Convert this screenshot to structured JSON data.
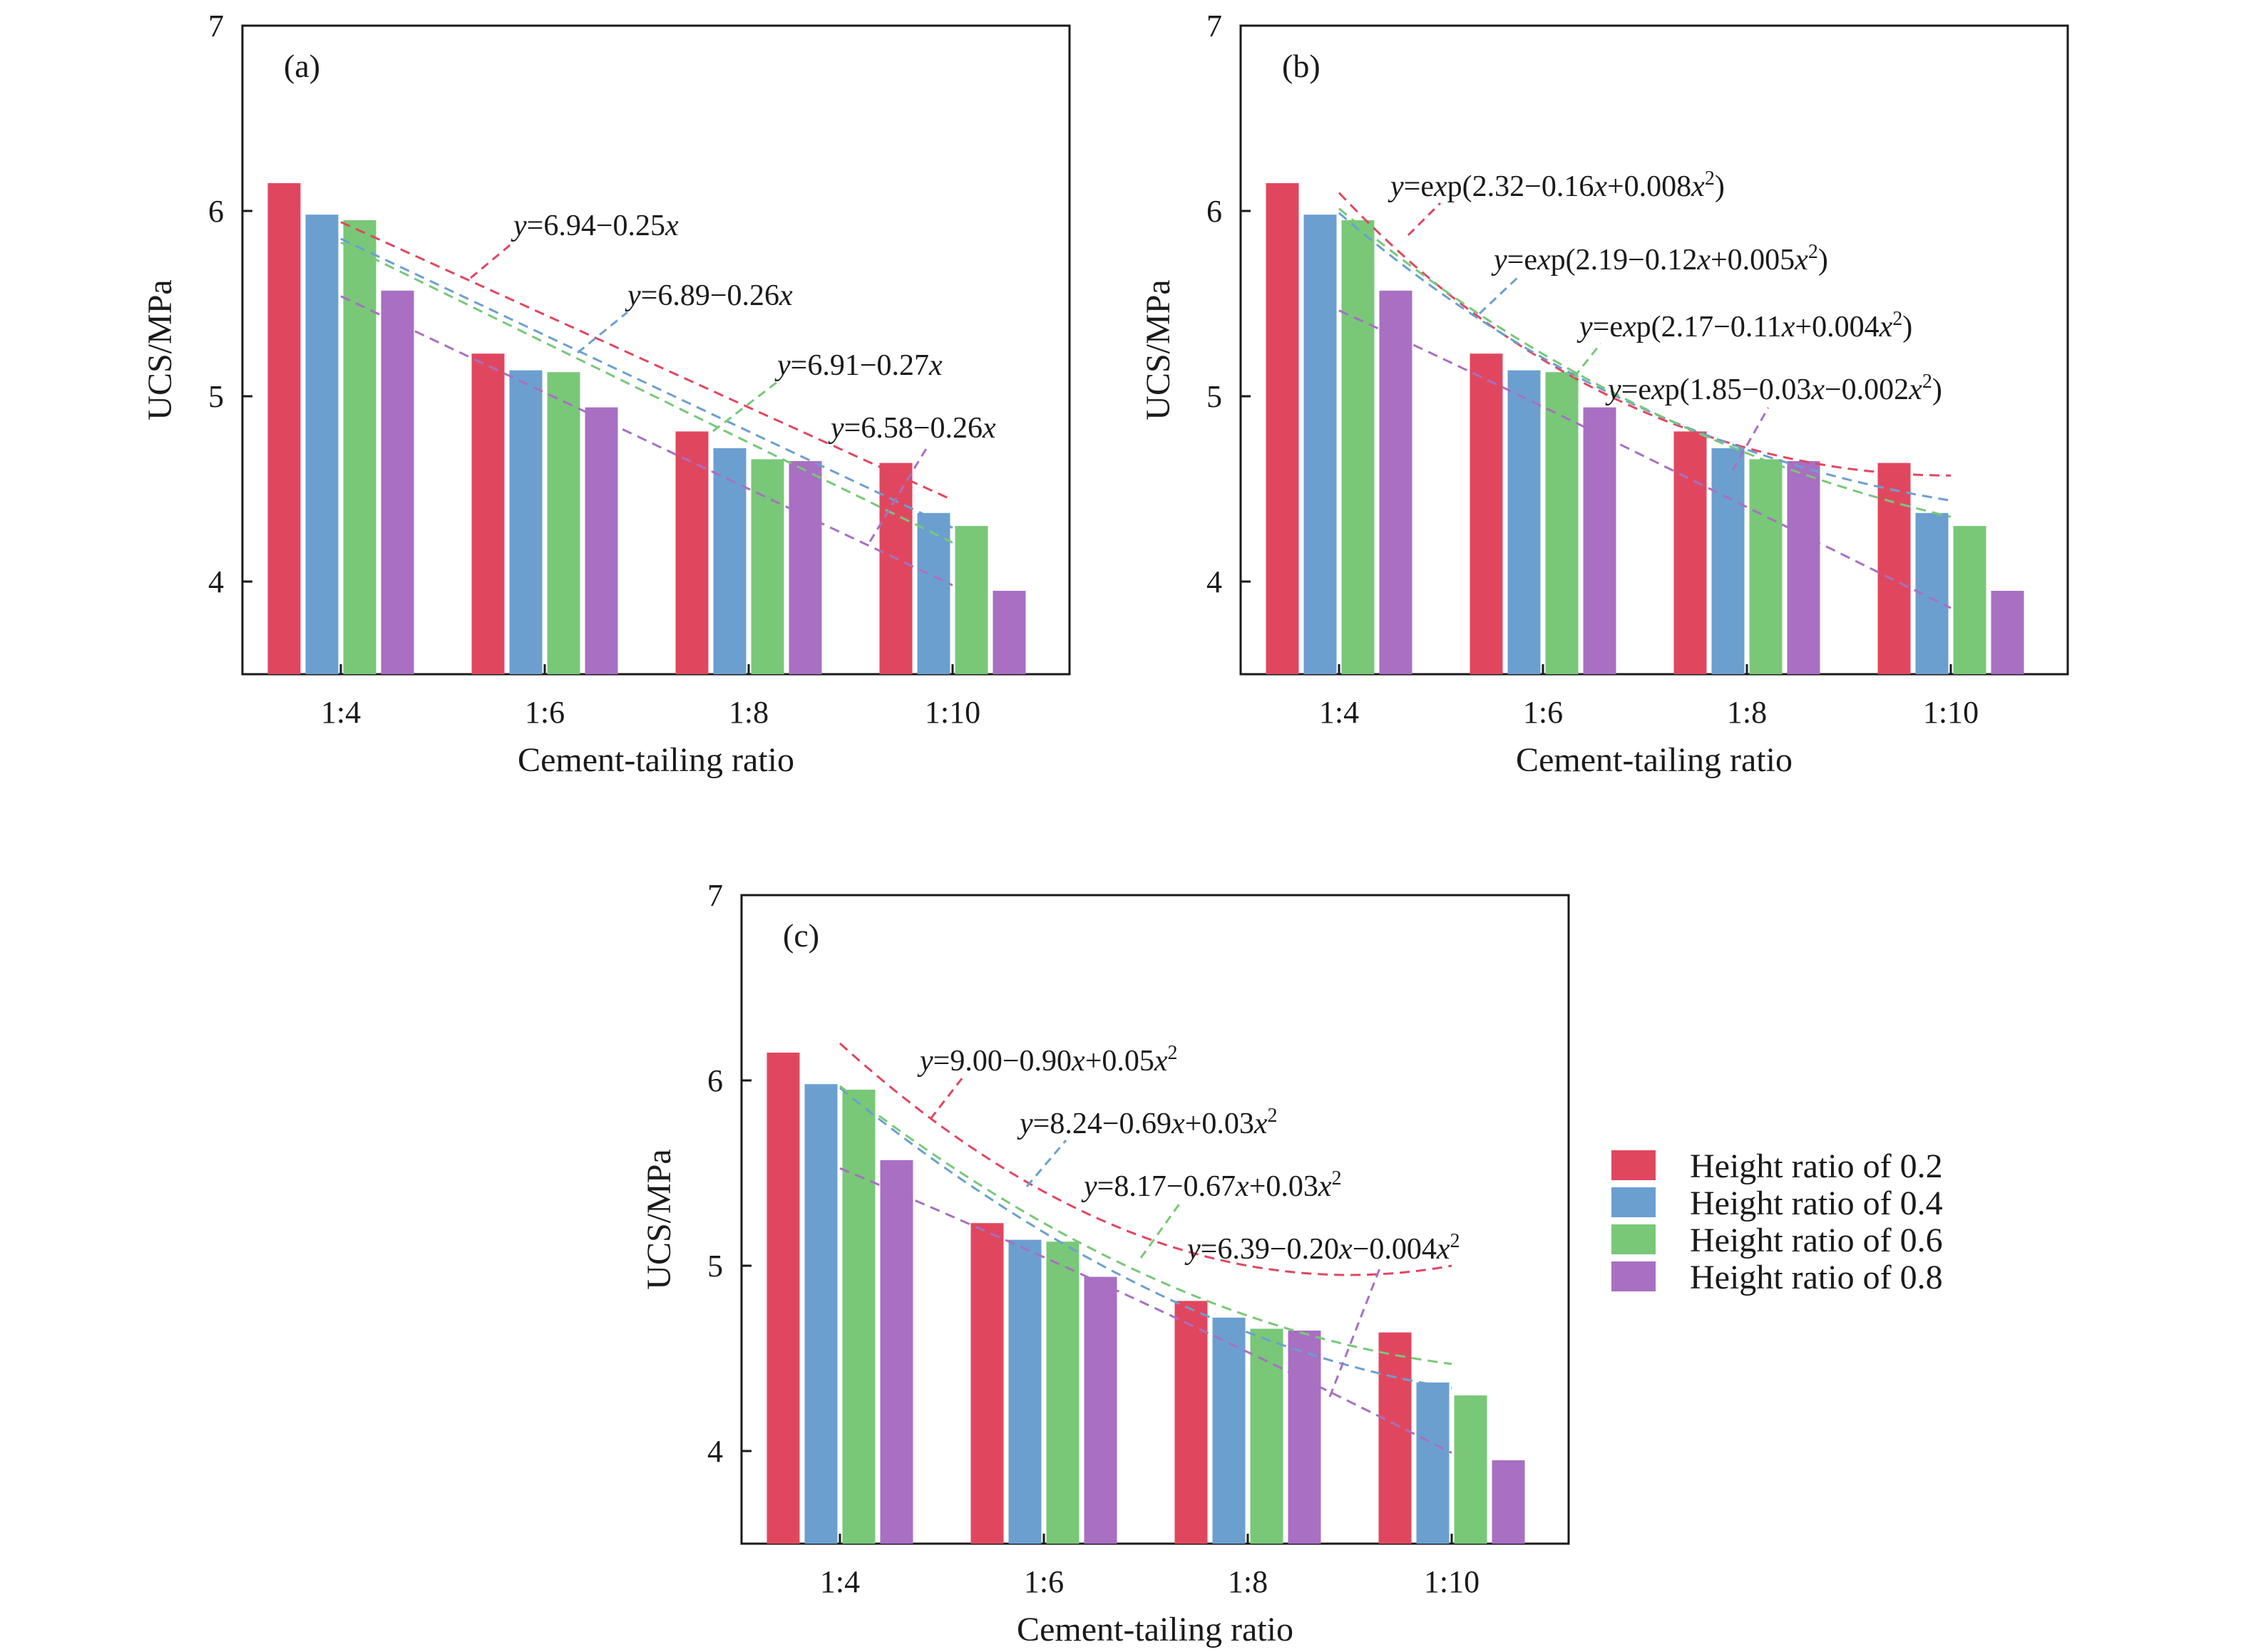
{
  "figure": {
    "legend": {
      "placement": "right of panel (c)",
      "entries": [
        "Height ratio of 0.2",
        "Height ratio of 0.4",
        "Height ratio of 0.6",
        "Height ratio of 0.8"
      ]
    }
  },
  "colors": {
    "series": [
      "#e0475f",
      "#6b9fd0",
      "#78c878",
      "#a86fc2"
    ]
  },
  "chart_data": [
    {
      "type": "bar",
      "panel_label": "(a)",
      "xlabel": "Cement-tailing ratio",
      "ylabel": "UCS/MPa",
      "categories": [
        "1:4",
        "1:6",
        "1:8",
        "1:10"
      ],
      "ylim": [
        3.5,
        7
      ],
      "yticks": [
        4,
        5,
        6,
        7
      ],
      "grid": false,
      "series": [
        {
          "name": "Height ratio of 0.2",
          "values": [
            6.15,
            5.23,
            4.81,
            4.64
          ]
        },
        {
          "name": "Height ratio of 0.4",
          "values": [
            5.98,
            5.14,
            4.72,
            4.37
          ]
        },
        {
          "name": "Height ratio of 0.6",
          "values": [
            5.95,
            5.13,
            4.66,
            4.3
          ]
        },
        {
          "name": "Height ratio of 0.8",
          "values": [
            5.57,
            4.94,
            4.65,
            3.95
          ]
        }
      ],
      "fits": [
        {
          "series": "Height ratio of 0.2",
          "equation": "y=6.94−0.25x"
        },
        {
          "series": "Height ratio of 0.4",
          "equation": "y=6.89−0.26x"
        },
        {
          "series": "Height ratio of 0.6",
          "equation": "y=6.91−0.27x"
        },
        {
          "series": "Height ratio of 0.8",
          "equation": "y=6.58−0.26x"
        }
      ]
    },
    {
      "type": "bar",
      "panel_label": "(b)",
      "xlabel": "Cement-tailing ratio",
      "ylabel": "UCS/MPa",
      "categories": [
        "1:4",
        "1:6",
        "1:8",
        "1:10"
      ],
      "ylim": [
        3.5,
        7
      ],
      "yticks": [
        4,
        5,
        6,
        7
      ],
      "grid": false,
      "series": [
        {
          "name": "Height ratio of 0.2",
          "values": [
            6.15,
            5.23,
            4.81,
            4.64
          ]
        },
        {
          "name": "Height ratio of 0.4",
          "values": [
            5.98,
            5.14,
            4.72,
            4.37
          ]
        },
        {
          "name": "Height ratio of 0.6",
          "values": [
            5.95,
            5.13,
            4.66,
            4.3
          ]
        },
        {
          "name": "Height ratio of 0.8",
          "values": [
            5.57,
            4.94,
            4.65,
            3.95
          ]
        }
      ],
      "fits": [
        {
          "series": "Height ratio of 0.2",
          "equation": "y=exp(2.32−0.16x+0.008x²)"
        },
        {
          "series": "Height ratio of 0.4",
          "equation": "y=exp(2.19−0.12x+0.005x²)"
        },
        {
          "series": "Height ratio of 0.6",
          "equation": "y=exp(2.17−0.11x+0.004x²)"
        },
        {
          "series": "Height ratio of 0.8",
          "equation": "y=exp(1.85−0.03x−0.002x²)"
        }
      ]
    },
    {
      "type": "bar",
      "panel_label": "(c)",
      "xlabel": "Cement-tailing ratio",
      "ylabel": "UCS/MPa",
      "categories": [
        "1:4",
        "1:6",
        "1:8",
        "1:10"
      ],
      "ylim": [
        3.5,
        7
      ],
      "yticks": [
        4,
        5,
        6,
        7
      ],
      "grid": false,
      "series": [
        {
          "name": "Height ratio of 0.2",
          "values": [
            6.15,
            5.23,
            4.81,
            4.64
          ]
        },
        {
          "name": "Height ratio of 0.4",
          "values": [
            5.98,
            5.14,
            4.72,
            4.37
          ]
        },
        {
          "name": "Height ratio of 0.6",
          "values": [
            5.95,
            5.13,
            4.66,
            4.3
          ]
        },
        {
          "name": "Height ratio of 0.8",
          "values": [
            5.57,
            4.94,
            4.65,
            3.95
          ]
        }
      ],
      "fits": [
        {
          "series": "Height ratio of 0.2",
          "equation": "y=9.00−0.90x+0.05x²"
        },
        {
          "series": "Height ratio of 0.4",
          "equation": "y=8.24−0.69x+0.03x²"
        },
        {
          "series": "Height ratio of 0.6",
          "equation": "y=8.17−0.67x+0.03x²"
        },
        {
          "series": "Height ratio of 0.8",
          "equation": "y=6.39−0.20x−0.004x²"
        }
      ]
    }
  ]
}
